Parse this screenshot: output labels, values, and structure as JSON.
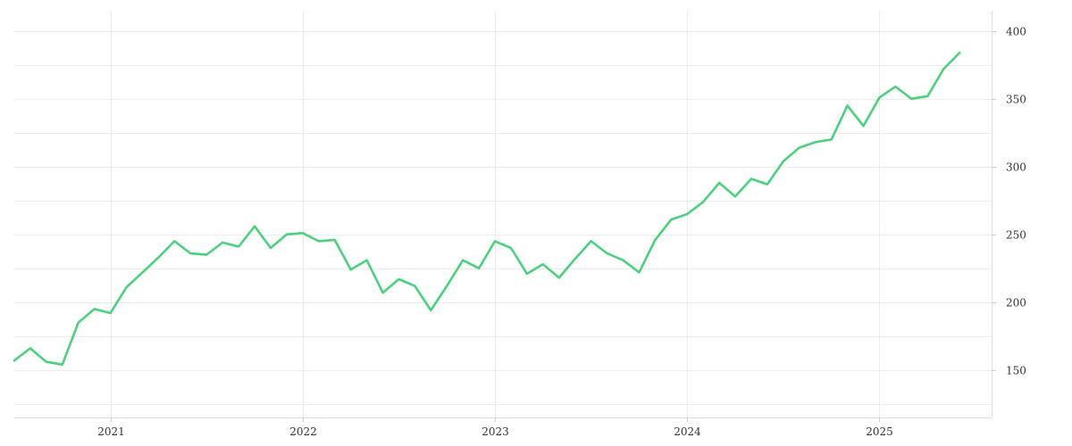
{
  "chart_data": {
    "type": "line",
    "title": "",
    "xlabel": "",
    "ylabel": "",
    "x_tick_labels": [
      "2021",
      "2022",
      "2023",
      "2024",
      "2025"
    ],
    "y_ticks": [
      150,
      200,
      250,
      300,
      350,
      400
    ],
    "ylim": [
      115,
      415
    ],
    "xlim": [
      "2020-07",
      "2025-08"
    ],
    "grid": true,
    "y_axis_side": "right",
    "legend": "none",
    "series_color": "#4cd07d",
    "series": [
      {
        "x": [
          "2020-07",
          "2020-08",
          "2020-09",
          "2020-10",
          "2020-11",
          "2020-12",
          "2021-01",
          "2021-02",
          "2021-03",
          "2021-04",
          "2021-05",
          "2021-06",
          "2021-07",
          "2021-08",
          "2021-09",
          "2021-10",
          "2021-11",
          "2021-12",
          "2022-01",
          "2022-02",
          "2022-03",
          "2022-04",
          "2022-05",
          "2022-06",
          "2022-07",
          "2022-08",
          "2022-09",
          "2022-10",
          "2022-11",
          "2022-12",
          "2023-01",
          "2023-02",
          "2023-03",
          "2023-04",
          "2023-05",
          "2023-06",
          "2023-07",
          "2023-08",
          "2023-09",
          "2023-10",
          "2023-11",
          "2023-12",
          "2024-01",
          "2024-02",
          "2024-03",
          "2024-04",
          "2024-05",
          "2024-06",
          "2024-07",
          "2024-08",
          "2024-09",
          "2024-10",
          "2024-11",
          "2024-12",
          "2025-01",
          "2025-02",
          "2025-03",
          "2025-04",
          "2025-05",
          "2025-06"
        ],
        "values": [
          157,
          166,
          156,
          154,
          185,
          195,
          192,
          211,
          222,
          233,
          245,
          236,
          235,
          244,
          241,
          256,
          240,
          250,
          251,
          245,
          246,
          224,
          231,
          207,
          217,
          212,
          194,
          212,
          231,
          225,
          245,
          240,
          221,
          228,
          218,
          232,
          245,
          236,
          231,
          222,
          246,
          261,
          265,
          274,
          288,
          278,
          291,
          287,
          304,
          314,
          318,
          320,
          345,
          330,
          351,
          359,
          350,
          352,
          372,
          384
        ]
      }
    ]
  }
}
